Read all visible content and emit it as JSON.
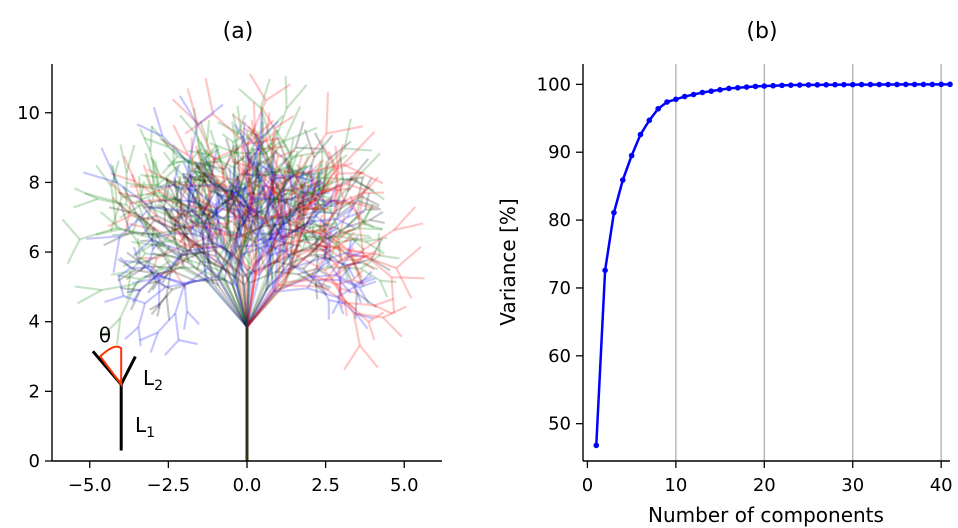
{
  "chart_data": [
    {
      "type": "line",
      "title": "(a)",
      "xlabel": "",
      "ylabel": "",
      "xlim": [
        -6.2,
        6.2
      ],
      "ylim": [
        0,
        11.4
      ],
      "xticks": [
        -5.0,
        -2.5,
        0.0,
        2.5,
        5.0
      ],
      "xtick_labels": [
        "−5.0",
        "−2.5",
        "0.0",
        "2.5",
        "5.0"
      ],
      "yticks": [
        0,
        2,
        4,
        6,
        8,
        10
      ],
      "ytick_labels": [
        "0",
        "2",
        "4",
        "6",
        "8",
        "10"
      ],
      "grid": false,
      "trunk": {
        "x": [
          0,
          0
        ],
        "y": [
          0,
          3.85
        ]
      },
      "branch_colors": [
        "#000000",
        "#0000ff",
        "#008000",
        "#ff0000"
      ],
      "branch_alpha": 0.22,
      "inset": {
        "stem": {
          "x": [
            -4.0,
            -4.0
          ],
          "y": [
            0.3,
            2.2
          ]
        },
        "left_branch": {
          "x": [
            -4.0,
            -4.9
          ],
          "y": [
            2.2,
            3.15
          ]
        },
        "right_branch": {
          "x": [
            -4.0,
            -3.55
          ],
          "y": [
            2.2,
            3.0
          ]
        },
        "angle_symbol": "θ",
        "angle_color": "#ff3300",
        "label_l2": "L",
        "label_l2_sub": "2",
        "label_l1": "L",
        "label_l1_sub": "1",
        "label_color": "#0000ff"
      }
    },
    {
      "type": "line",
      "title": "(b)",
      "xlabel": "Number of components",
      "ylabel": "Variance [%]",
      "xlim": [
        -0.5,
        41
      ],
      "ylim": [
        44.5,
        103
      ],
      "xticks": [
        0,
        10,
        20,
        30,
        40
      ],
      "xtick_labels": [
        "0",
        "10",
        "20",
        "30",
        "40"
      ],
      "yticks": [
        50,
        60,
        70,
        80,
        90,
        100
      ],
      "ytick_labels": [
        "50",
        "60",
        "70",
        "80",
        "90",
        "100"
      ],
      "grid": "x",
      "line_color": "#0000ff",
      "series": [
        {
          "x": [
            1,
            2,
            3,
            4,
            5,
            6,
            7,
            8,
            9,
            10,
            11,
            12,
            13,
            14,
            15,
            16,
            17,
            18,
            19,
            20,
            21,
            22,
            23,
            24,
            25,
            26,
            27,
            28,
            29,
            30,
            31,
            32,
            33,
            34,
            35,
            36,
            37,
            38,
            39,
            40,
            41
          ],
          "y": [
            46.8,
            72.6,
            81.1,
            85.9,
            89.5,
            92.6,
            94.7,
            96.4,
            97.4,
            97.8,
            98.2,
            98.5,
            98.8,
            99.0,
            99.2,
            99.4,
            99.5,
            99.6,
            99.7,
            99.75,
            99.8,
            99.85,
            99.88,
            99.9,
            99.92,
            99.93,
            99.94,
            99.95,
            99.96,
            99.96,
            99.97,
            99.97,
            99.98,
            99.98,
            99.98,
            99.99,
            99.99,
            99.99,
            99.99,
            100.0,
            100.0
          ]
        }
      ]
    }
  ]
}
